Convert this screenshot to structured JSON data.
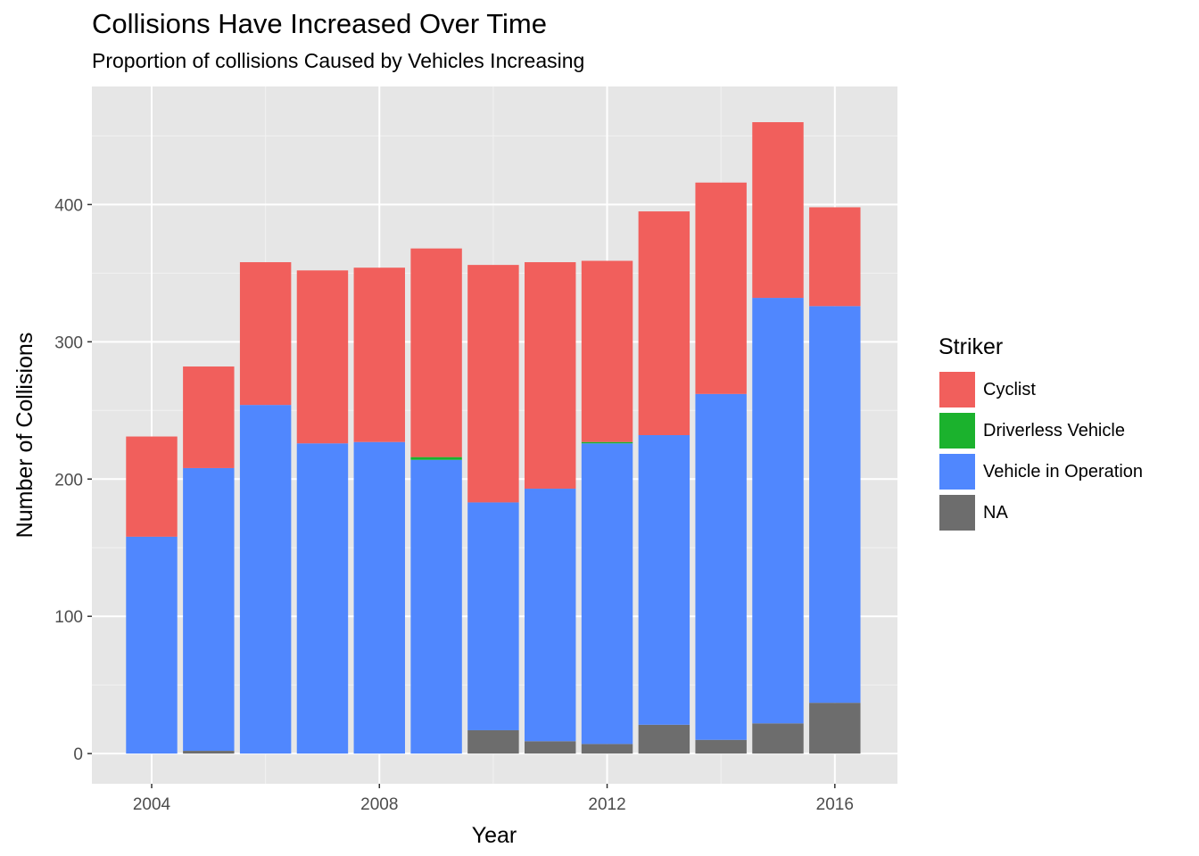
{
  "chart_data": {
    "type": "bar",
    "stacked": true,
    "title": "Collisions Have Increased Over Time",
    "subtitle": "Proportion of collisions Caused by Vehicles Increasing",
    "xlabel": "Year",
    "ylabel": "Number of Collisions",
    "categories": [
      2004,
      2005,
      2006,
      2007,
      2008,
      2009,
      2010,
      2011,
      2012,
      2013,
      2014,
      2015,
      2016
    ],
    "x_ticks": [
      "2004",
      "2008",
      "2012",
      "2016"
    ],
    "y_ticks": [
      "0",
      "100",
      "200",
      "300",
      "400"
    ],
    "xlim": [
      2002.95,
      2017.1
    ],
    "ylim": [
      -22,
      486
    ],
    "grid": true,
    "legend_title": "Striker",
    "legend_position": "right",
    "series": [
      {
        "name": "NA",
        "color": "#6d6d6d",
        "values": [
          0,
          2,
          0,
          0,
          0,
          0,
          17,
          9,
          7,
          21,
          10,
          22,
          37
        ]
      },
      {
        "name": "Vehicle in Operation",
        "color": "#5087fe",
        "values": [
          158,
          206,
          254,
          226,
          227,
          214,
          166,
          184,
          219,
          211,
          252,
          310,
          289
        ]
      },
      {
        "name": "Driverless Vehicle",
        "color": "#1bb22d",
        "values": [
          0,
          0,
          0,
          0,
          0,
          2,
          0,
          0,
          1,
          0,
          0,
          0,
          0
        ]
      },
      {
        "name": "Cyclist",
        "color": "#f15f5c",
        "values": [
          73,
          74,
          104,
          126,
          127,
          152,
          173,
          165,
          132,
          163,
          154,
          128,
          72
        ]
      }
    ],
    "legend_order": [
      "Cyclist",
      "Driverless Vehicle",
      "Vehicle in Operation",
      "NA"
    ]
  }
}
